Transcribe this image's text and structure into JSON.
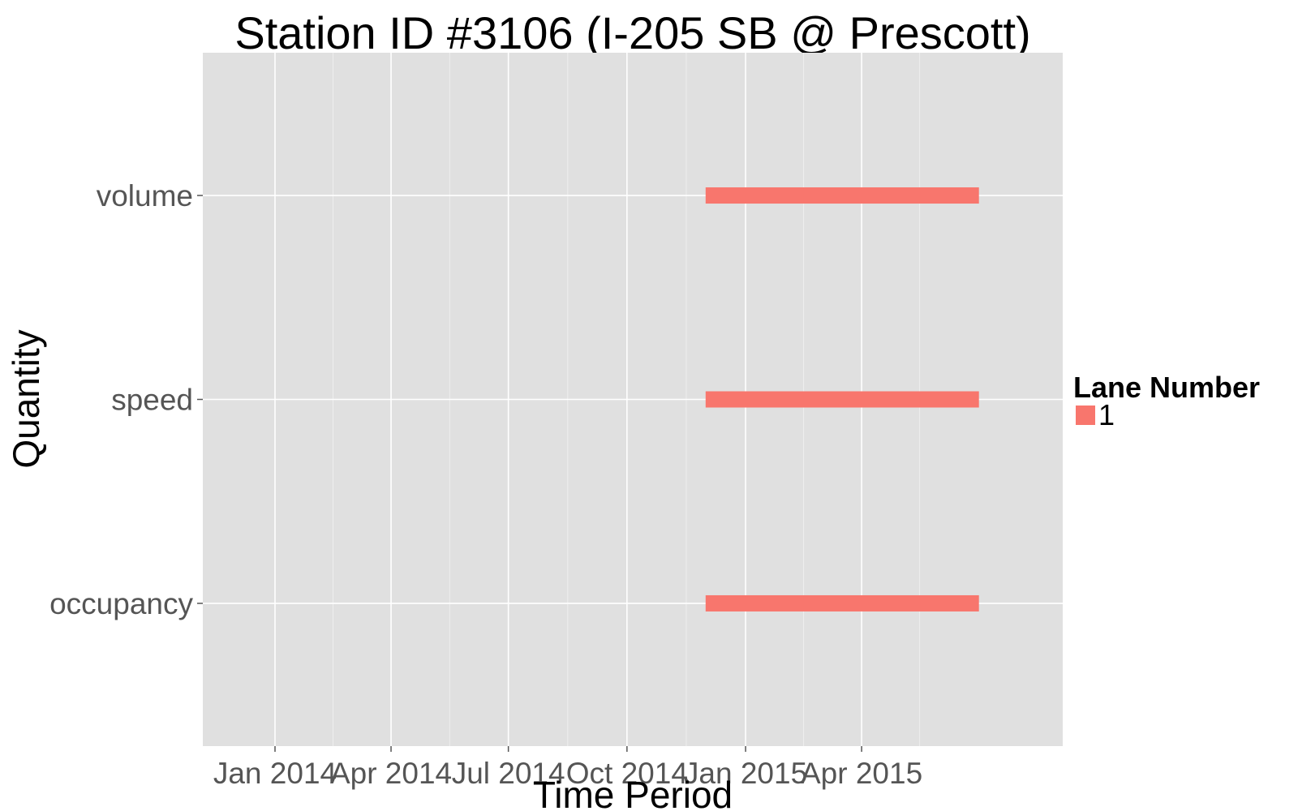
{
  "chart_data": {
    "type": "bar",
    "title": "Station ID #3106 (I-205 SB @ Prescott)",
    "xlabel": "Time Period",
    "ylabel": "Quantity",
    "x_axis": {
      "scale": "date",
      "range": [
        "2013-11-06",
        "2015-09-04"
      ],
      "ticks": [
        "2014-01-01",
        "2014-04-01",
        "2014-07-01",
        "2014-10-01",
        "2015-01-01",
        "2015-04-01"
      ],
      "tick_labels": [
        "Jan 2014",
        "Apr 2014",
        "Jul 2014",
        "Oct 2014",
        "Jan 2015",
        "Apr 2015"
      ]
    },
    "categories": [
      "occupancy",
      "speed",
      "volume"
    ],
    "series": [
      {
        "name": "1",
        "color": "#f8766d",
        "segments": [
          {
            "category": "volume",
            "start": "2014-12-01",
            "end": "2015-07-01"
          },
          {
            "category": "speed",
            "start": "2014-12-01",
            "end": "2015-07-01"
          },
          {
            "category": "occupancy",
            "start": "2014-12-01",
            "end": "2015-07-01"
          }
        ]
      }
    ],
    "legend": {
      "title": "Lane Number",
      "position": "right"
    },
    "grid": true,
    "colors": {
      "panel": "#e0e0e0",
      "grid": "#ffffff",
      "bar": "#f8766d"
    }
  }
}
